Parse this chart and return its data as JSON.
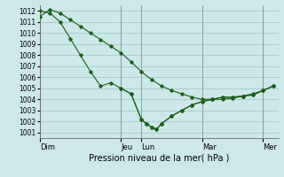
{
  "background_color": "#cce8e8",
  "grid_color": "#aacfcf",
  "line_color": "#1a5e1a",
  "title": "Pression niveau de la mer( hPa )",
  "ylim": [
    1000.5,
    1012.5
  ],
  "yticks": [
    1001,
    1002,
    1003,
    1004,
    1005,
    1006,
    1007,
    1008,
    1009,
    1010,
    1011,
    1012
  ],
  "x_day_labels": [
    "Dim",
    "Jeu",
    "Lun",
    "Mar",
    "Mer"
  ],
  "x_day_positions": [
    0,
    16,
    20,
    32,
    44
  ],
  "xlim": [
    0,
    47
  ],
  "series1_x": [
    0,
    2,
    4,
    6,
    8,
    10,
    12,
    14,
    16,
    18,
    20,
    22,
    24,
    26,
    28,
    30,
    32,
    34,
    36,
    38,
    40,
    42,
    44,
    46
  ],
  "series1_y": [
    1011.5,
    1012.1,
    1011.8,
    1011.2,
    1010.6,
    1010.0,
    1009.4,
    1008.8,
    1008.2,
    1007.4,
    1006.5,
    1005.8,
    1005.2,
    1004.8,
    1004.5,
    1004.2,
    1004.0,
    1004.0,
    1004.0,
    1004.1,
    1004.3,
    1004.5,
    1004.8,
    1005.2
  ],
  "series2_x": [
    0,
    2,
    4,
    6,
    8,
    10,
    12,
    14,
    16,
    18,
    20,
    21,
    22,
    23,
    24,
    26,
    28,
    30,
    32,
    34,
    36,
    38,
    40,
    42,
    44,
    46
  ],
  "series2_y": [
    1012.0,
    1011.8,
    1011.0,
    1009.5,
    1008.0,
    1006.5,
    1005.2,
    1005.5,
    1005.0,
    1004.5,
    1002.2,
    1001.8,
    1001.5,
    1001.3,
    1001.8,
    1002.5,
    1003.0,
    1003.5,
    1003.8,
    1004.0,
    1004.2,
    1004.2,
    1004.3,
    1004.4,
    1004.8,
    1005.2
  ],
  "series3_x": [
    16,
    18,
    20,
    21,
    22,
    23,
    24,
    26,
    28,
    30,
    32,
    34,
    36,
    38,
    40,
    42,
    44,
    46
  ],
  "series3_y": [
    1005.0,
    1004.5,
    1002.2,
    1001.8,
    1001.5,
    1001.3,
    1001.8,
    1002.5,
    1003.0,
    1003.5,
    1003.8,
    1004.0,
    1004.2,
    1004.2,
    1004.3,
    1004.4,
    1004.8,
    1005.2
  ],
  "ylabel_fontsize": 6.5,
  "tick_fontsize": 5.5,
  "xlabel_fontsize": 7.0
}
